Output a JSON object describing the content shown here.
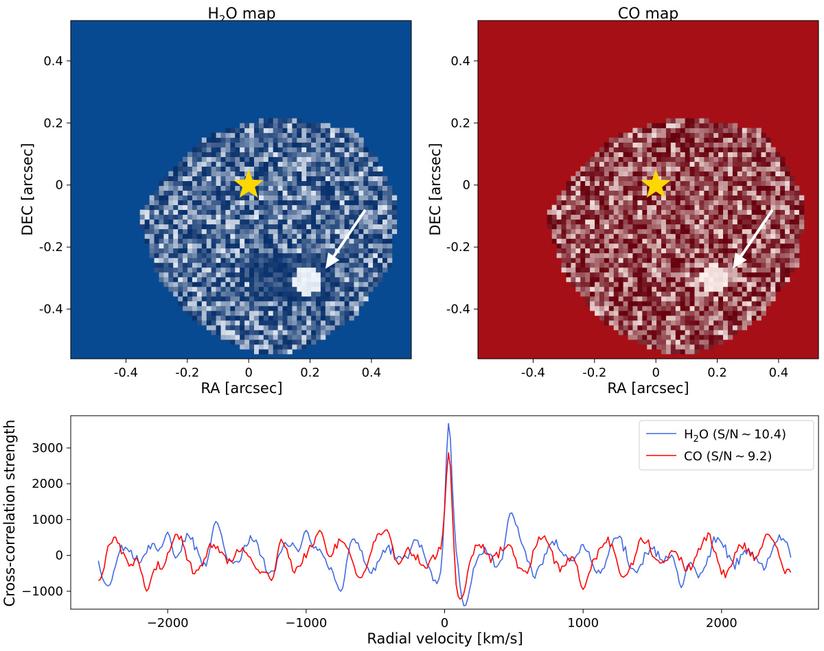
{
  "chart_data": [
    {
      "type": "heatmap",
      "panel": "left",
      "title": {
        "main": "H",
        "sub": "2",
        "rest": "O map"
      },
      "xlabel": "RA [arcsec]",
      "ylabel": "DEC [arcsec]",
      "xlim": [
        -0.58,
        0.53
      ],
      "ylim": [
        -0.56,
        0.53
      ],
      "xticks": [
        "-0.4",
        "-0.2",
        "0",
        "0.2",
        "0.4"
      ],
      "xtick_values": [
        -0.4,
        -0.2,
        0,
        0.2,
        0.4
      ],
      "yticks": [
        "0.4",
        "0.2",
        "0",
        "-0.2",
        "-0.4"
      ],
      "ytick_values": [
        0.4,
        0.2,
        0,
        -0.2,
        -0.4
      ],
      "colors": {
        "background": "#084a91",
        "low": "#08306b",
        "high": "#f7fbff"
      },
      "star": {
        "ra": 0.0,
        "dec": 0.0,
        "color": "#ffd700"
      },
      "arrow": {
        "from": [
          0.38,
          -0.08
        ],
        "to": [
          0.25,
          -0.27
        ],
        "color": "#ffffff"
      },
      "hotspot": {
        "ra": 0.19,
        "dec": -0.31
      }
    },
    {
      "type": "heatmap",
      "panel": "right",
      "title": {
        "main": "CO map",
        "sub": "",
        "rest": ""
      },
      "xlabel": "RA [arcsec]",
      "ylabel": "DEC [arcsec]",
      "xlim": [
        -0.58,
        0.53
      ],
      "ylim": [
        -0.56,
        0.53
      ],
      "xticks": [
        "-0.4",
        "-0.2",
        "0",
        "0.2",
        "0.4"
      ],
      "xtick_values": [
        -0.4,
        -0.2,
        0,
        0.2,
        0.4
      ],
      "yticks": [
        "0.4",
        "0.2",
        "0",
        "-0.2",
        "-0.4"
      ],
      "ytick_values": [
        0.4,
        0.2,
        0,
        -0.2,
        -0.4
      ],
      "colors": {
        "background": "#a50f15",
        "low": "#67000d",
        "high": "#fff5f0"
      },
      "star": {
        "ra": 0.0,
        "dec": 0.0,
        "color": "#ffd700"
      },
      "arrow": {
        "from": [
          0.38,
          -0.08
        ],
        "to": [
          0.25,
          -0.27
        ],
        "color": "#ffffff"
      },
      "hotspot": {
        "ra": 0.19,
        "dec": -0.3
      }
    },
    {
      "type": "line",
      "panel": "bottom",
      "xlabel": "Radial velocity [km/s]",
      "ylabel": "Cross-correlation strength",
      "xlim": [
        -2700,
        2700
      ],
      "ylim": [
        -1500,
        3900
      ],
      "xticks": [
        "−2000",
        "−1000",
        "0",
        "1000",
        "2000"
      ],
      "xtick_values": [
        -2000,
        -1000,
        0,
        1000,
        2000
      ],
      "yticks": [
        "3000",
        "2000",
        "1000",
        "0",
        "−1000"
      ],
      "ytick_values": [
        3000,
        2000,
        1000,
        0,
        -1000
      ],
      "x_range": [
        -2500,
        2500
      ],
      "series": [
        {
          "name": "H2O (S/N ~ 10.4)",
          "legend": {
            "pre": "H",
            "sub": "2",
            "post": "O (S/N ∼ 10.4)"
          },
          "color": "#4169e1",
          "peak_x": 30,
          "peak_y": 3700,
          "keypoints": [
            [
              -1650,
              950
            ],
            [
              480,
              1200
            ],
            [
              -1000,
              700
            ],
            [
              150,
              -1250
            ],
            [
              -2430,
              -850
            ],
            [
              -750,
              -1000
            ],
            [
              1710,
              -900
            ],
            [
              -2000,
              650
            ]
          ]
        },
        {
          "name": "CO (S/N ~ 9.2)",
          "legend": {
            "pre": "CO (S/N ∼ 9.2)",
            "sub": "",
            "post": ""
          },
          "color": "#ff0000",
          "peak_x": 30,
          "peak_y": 2880,
          "keypoints": [
            [
              -2500,
              -700
            ],
            [
              2330,
              600
            ],
            [
              -900,
              700
            ],
            [
              1000,
              -950
            ],
            [
              -1250,
              -700
            ],
            [
              120,
              -900
            ],
            [
              -420,
              720
            ],
            [
              -2150,
              -1000
            ]
          ]
        }
      ]
    }
  ]
}
